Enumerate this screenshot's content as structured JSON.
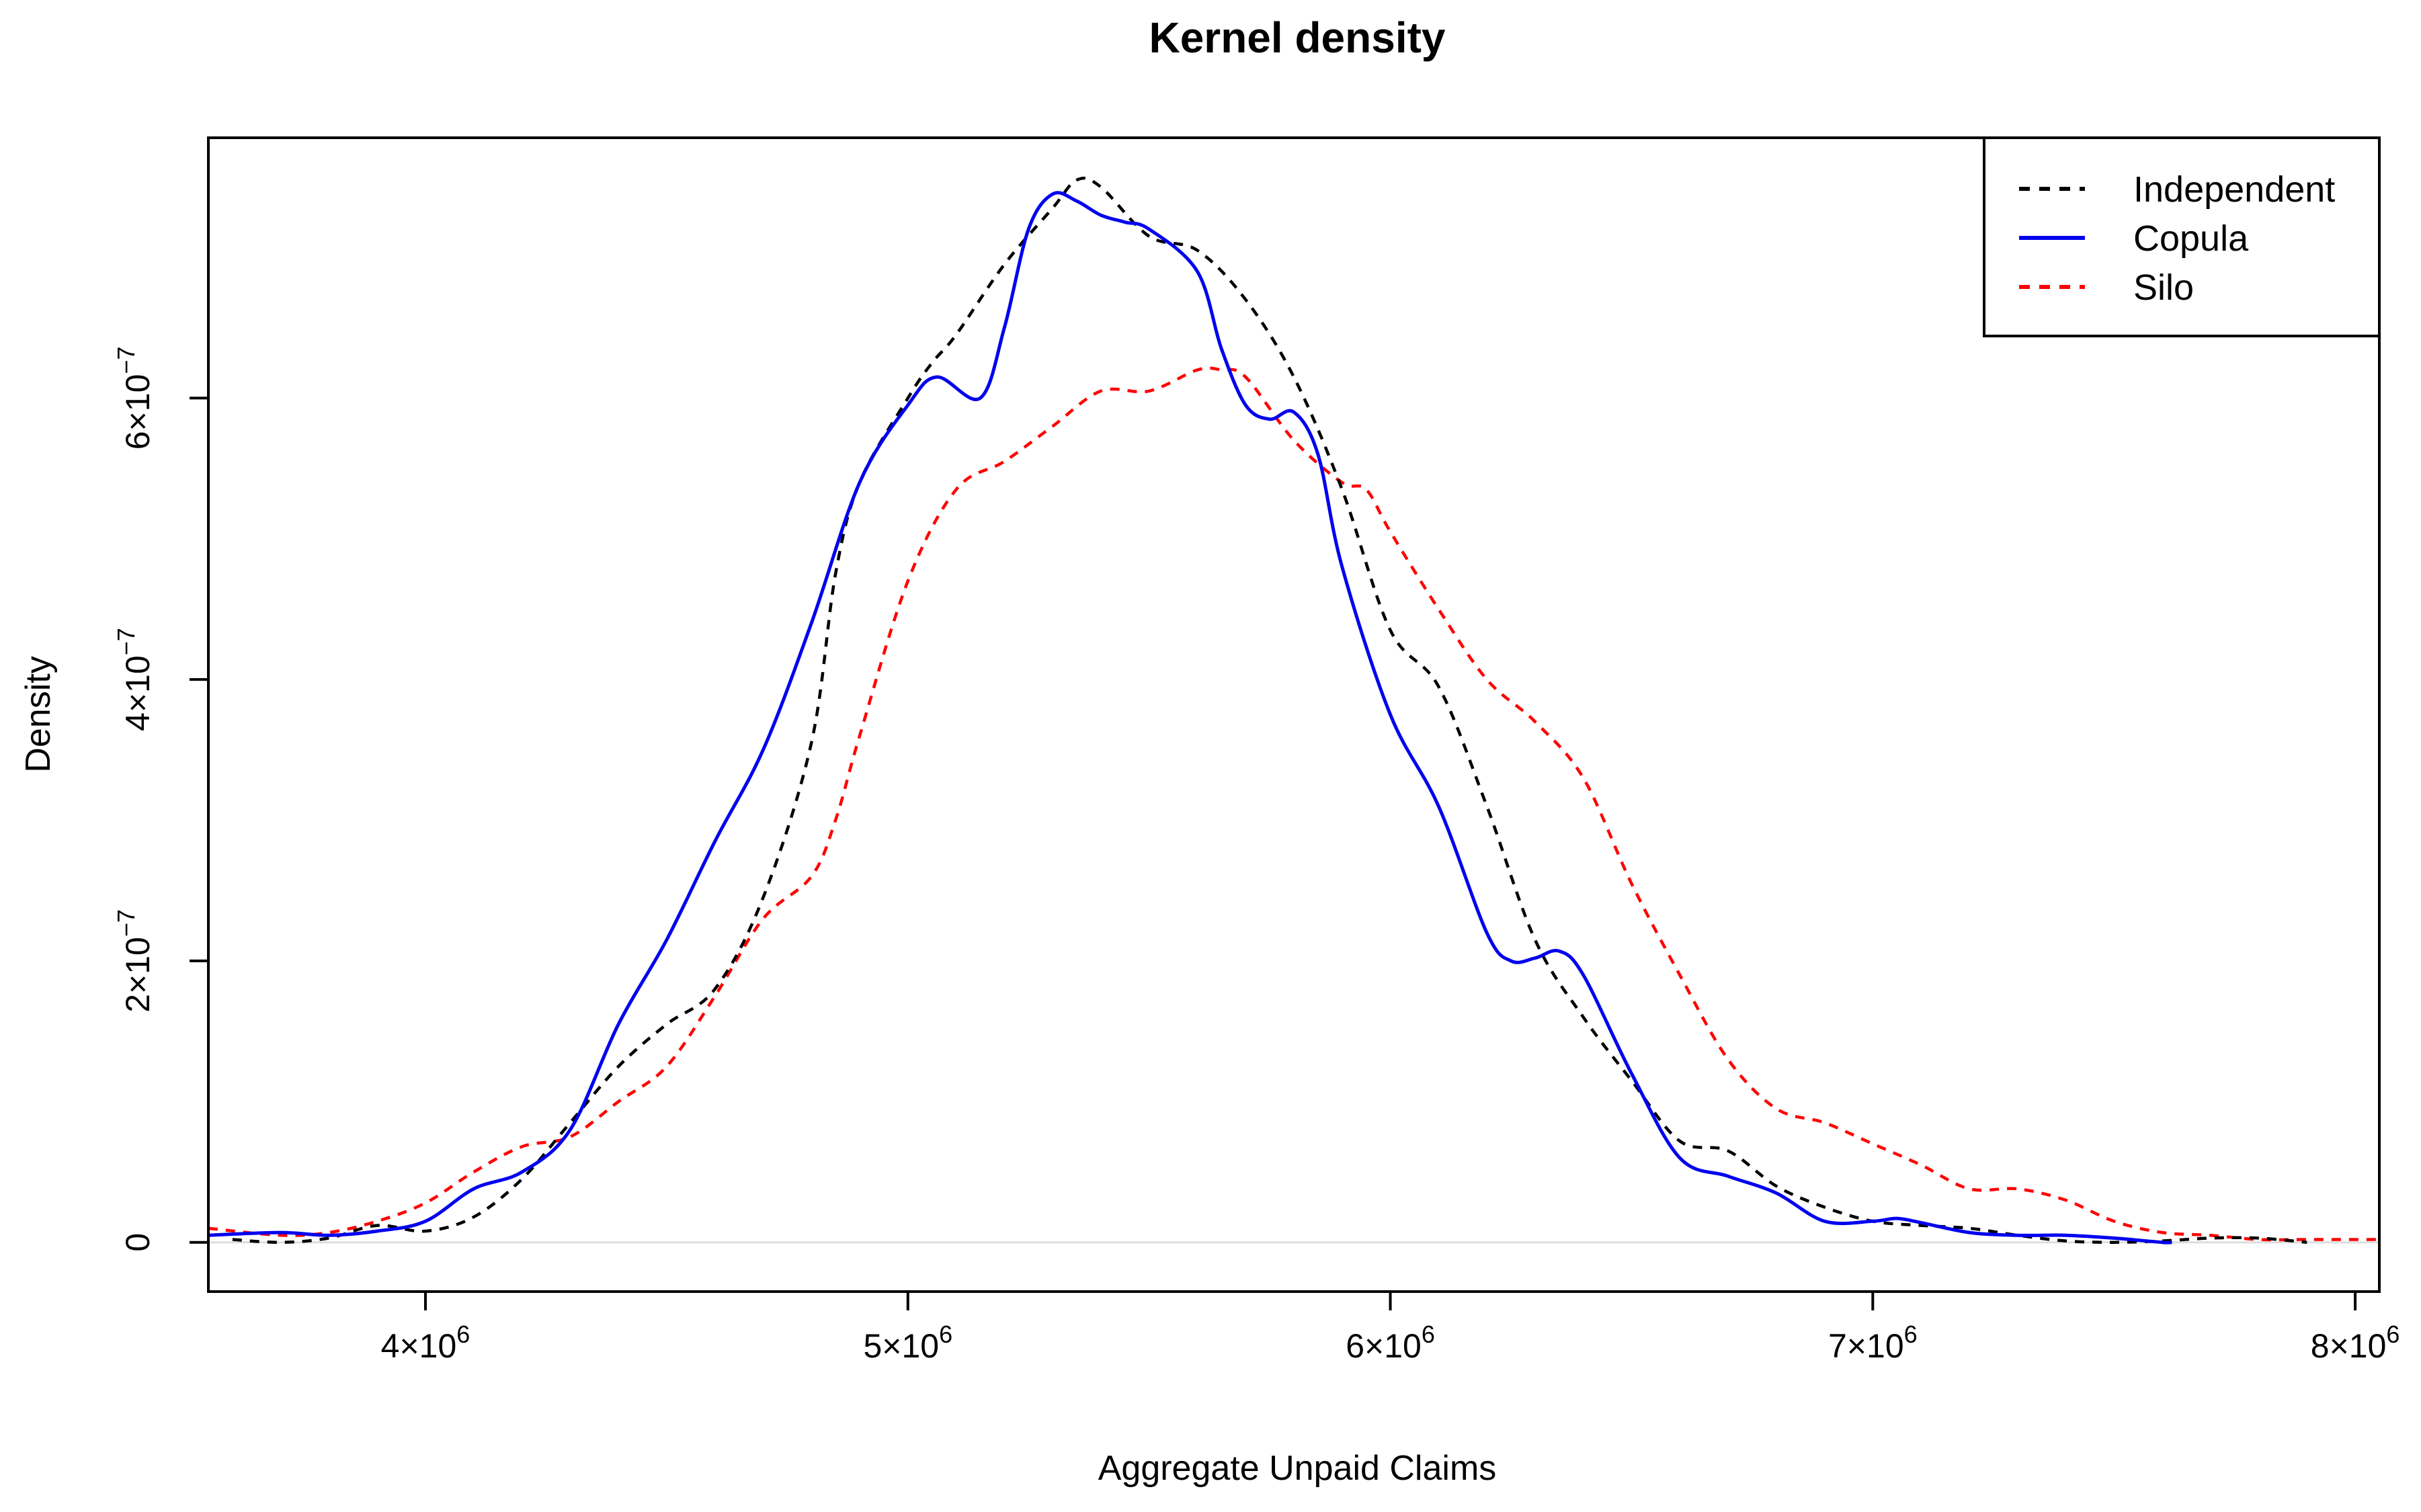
{
  "chart_data": {
    "type": "line",
    "title": "Kernel density",
    "xlabel": "Aggregate Unpaid Claims",
    "ylabel": "Density",
    "xlim": [
      3550000,
      8050000
    ],
    "ylim": [
      -3.5e-08,
      7.85e-07
    ],
    "x_ticks": [
      {
        "value": 4000000,
        "mantissa": "4",
        "exp": "6"
      },
      {
        "value": 5000000,
        "mantissa": "5",
        "exp": "6"
      },
      {
        "value": 6000000,
        "mantissa": "6",
        "exp": "6"
      },
      {
        "value": 7000000,
        "mantissa": "7",
        "exp": "6"
      },
      {
        "value": 8000000,
        "mantissa": "8",
        "exp": "6"
      }
    ],
    "y_ticks": [
      {
        "value": 0,
        "mantissa": "0",
        "exp": ""
      },
      {
        "value": 2e-07,
        "mantissa": "2",
        "exp": "−7"
      },
      {
        "value": 4e-07,
        "mantissa": "4",
        "exp": "−7"
      },
      {
        "value": 6e-07,
        "mantissa": "6",
        "exp": "−7"
      }
    ],
    "legend_position": "top-right",
    "series": [
      {
        "name": "Independent",
        "color": "#000000",
        "dash": "dashed",
        "x": [
          3600000,
          3700000,
          3800000,
          3900000,
          4000000,
          4100000,
          4200000,
          4300000,
          4400000,
          4500000,
          4600000,
          4700000,
          4800000,
          4850000,
          4900000,
          5000000,
          5050000,
          5100000,
          5200000,
          5300000,
          5350000,
          5400000,
          5500000,
          5600000,
          5700000,
          5800000,
          5900000,
          6000000,
          6100000,
          6200000,
          6300000,
          6400000,
          6500000,
          6600000,
          6700000,
          6800000,
          6900000,
          7000000,
          7100000,
          7200000,
          7300000,
          7400000,
          7500000,
          7600000,
          7700000,
          7800000,
          7900000
        ],
        "values": [
          2e-09,
          0.0,
          3e-09,
          1.2e-08,
          8e-09,
          1.8e-08,
          4.5e-08,
          8.5e-08,
          1.25e-07,
          1.55e-07,
          1.8e-07,
          2.45e-07,
          3.55e-07,
          4.75e-07,
          5.4e-07,
          6e-07,
          6.25e-07,
          6.45e-07,
          6.95e-07,
          7.35e-07,
          7.55e-07,
          7.5e-07,
          7.15e-07,
          7.05e-07,
          6.7e-07,
          6.15e-07,
          5.35e-07,
          4.35e-07,
          3.95e-07,
          3.1e-07,
          2.15e-07,
          1.6e-07,
          1.15e-07,
          7.2e-08,
          6.5e-08,
          4e-08,
          2.5e-08,
          1.5e-08,
          1.2e-08,
          1e-08,
          5e-09,
          1e-09,
          0.0,
          1e-09,
          3e-09,
          3e-09,
          0.0
        ]
      },
      {
        "name": "Copula",
        "color": "#0000ee",
        "dash": "solid",
        "x": [
          3550000,
          3700000,
          3800000,
          3900000,
          4000000,
          4100000,
          4200000,
          4300000,
          4400000,
          4500000,
          4600000,
          4700000,
          4800000,
          4900000,
          5000000,
          5060000,
          5150000,
          5200000,
          5250000,
          5300000,
          5350000,
          5400000,
          5450000,
          5500000,
          5600000,
          5650000,
          5700000,
          5750000,
          5800000,
          5850000,
          5900000,
          6000000,
          6100000,
          6200000,
          6250000,
          6300000,
          6350000,
          6400000,
          6500000,
          6600000,
          6700000,
          6800000,
          6900000,
          7000000,
          7050000,
          7100000,
          7200000,
          7300000,
          7400000,
          7500000,
          7600000,
          7620000
        ],
        "values": [
          5e-09,
          7e-09,
          5e-09,
          8e-09,
          1.5e-08,
          3.8e-08,
          5e-08,
          8e-08,
          1.55e-07,
          2.15e-07,
          2.85e-07,
          3.5e-07,
          4.4e-07,
          5.4e-07,
          5.95e-07,
          6.15e-07,
          6e-07,
          6.5e-07,
          7.2e-07,
          7.45e-07,
          7.4e-07,
          7.3e-07,
          7.25e-07,
          7.2e-07,
          6.9e-07,
          6.35e-07,
          5.95e-07,
          5.85e-07,
          5.9e-07,
          5.6e-07,
          4.8e-07,
          3.75e-07,
          3.1e-07,
          2.2e-07,
          2e-07,
          2.02e-07,
          2.07e-07,
          1.9e-07,
          1.2e-07,
          6e-08,
          4.7e-08,
          3.5e-08,
          1.5e-08,
          1.5e-08,
          1.7e-08,
          1.4e-08,
          7e-09,
          5e-09,
          5e-09,
          3e-09,
          0.0,
          0.0
        ]
      },
      {
        "name": "Silo",
        "color": "#ff0000",
        "dash": "dashed",
        "x": [
          3550000,
          3700000,
          3800000,
          3900000,
          4000000,
          4100000,
          4200000,
          4300000,
          4400000,
          4500000,
          4600000,
          4700000,
          4800000,
          4850000,
          4900000,
          5000000,
          5100000,
          5200000,
          5300000,
          5400000,
          5500000,
          5600000,
          5650000,
          5700000,
          5800000,
          5900000,
          5950000,
          6000000,
          6100000,
          6200000,
          6300000,
          6400000,
          6500000,
          6600000,
          6700000,
          6800000,
          6900000,
          7000000,
          7100000,
          7200000,
          7300000,
          7400000,
          7500000,
          7600000,
          7700000,
          7800000,
          7900000,
          8000000,
          8050000
        ],
        "values": [
          1e-08,
          5e-09,
          7e-09,
          1.5e-08,
          2.8e-08,
          5e-08,
          6.8e-08,
          7.5e-08,
          1e-07,
          1.25e-07,
          1.75e-07,
          2.3e-07,
          2.6e-07,
          3e-07,
          3.6e-07,
          4.7e-07,
          5.35e-07,
          5.55e-07,
          5.8e-07,
          6.05e-07,
          6.05e-07,
          6.2e-07,
          6.2e-07,
          6.15e-07,
          5.7e-07,
          5.4e-07,
          5.35e-07,
          5.05e-07,
          4.5e-07,
          4e-07,
          3.7e-07,
          3.3e-07,
          2.55e-07,
          1.9e-07,
          1.3e-07,
          9.5e-08,
          8.5e-08,
          7e-08,
          5.5e-08,
          3.8e-08,
          3.8e-08,
          3e-08,
          1.5e-08,
          7e-09,
          5e-09,
          2e-09,
          2e-09,
          2e-09,
          2e-09
        ]
      }
    ]
  }
}
